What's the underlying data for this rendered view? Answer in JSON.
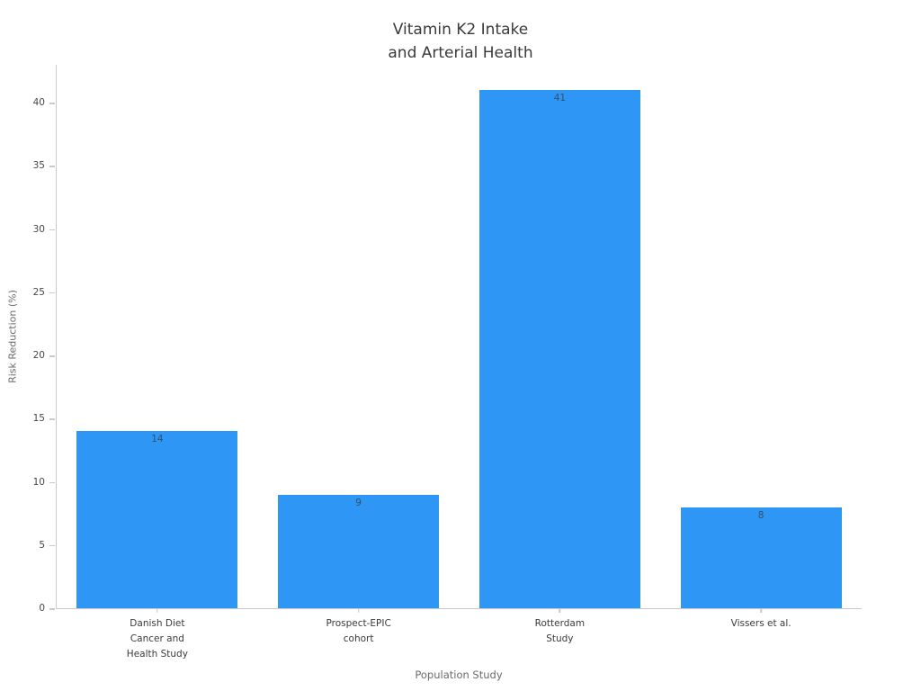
{
  "chart_data": {
    "type": "bar",
    "title": "Vitamin K2 Intake\nand Arterial Health",
    "categories": [
      "Danish Diet\nCancer and\nHealth Study",
      "Prospect-EPIC\ncohort",
      "Rotterdam\nStudy",
      "Vissers et al."
    ],
    "values": [
      14,
      9,
      41,
      8
    ],
    "value_labels": [
      "14",
      "9",
      "41",
      "8"
    ],
    "xlabel": "Population Study",
    "ylabel": "Risk Reduction (%)",
    "ylim": [
      0,
      43
    ],
    "yticks": [
      0,
      5,
      10,
      15,
      20,
      25,
      30,
      35,
      40
    ],
    "bar_color": "#2e96f5",
    "grid": "off",
    "legend": "none"
  }
}
